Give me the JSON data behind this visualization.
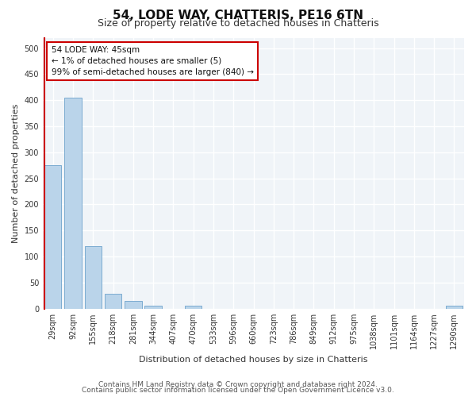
{
  "title1": "54, LODE WAY, CHATTERIS, PE16 6TN",
  "title2": "Size of property relative to detached houses in Chatteris",
  "xlabel": "Distribution of detached houses by size in Chatteris",
  "ylabel": "Number of detached properties",
  "categories": [
    "29sqm",
    "92sqm",
    "155sqm",
    "218sqm",
    "281sqm",
    "344sqm",
    "407sqm",
    "470sqm",
    "533sqm",
    "596sqm",
    "660sqm",
    "723sqm",
    "786sqm",
    "849sqm",
    "912sqm",
    "975sqm",
    "1038sqm",
    "1101sqm",
    "1164sqm",
    "1227sqm",
    "1290sqm"
  ],
  "values": [
    275,
    405,
    120,
    28,
    14,
    5,
    0,
    5,
    0,
    0,
    0,
    0,
    0,
    0,
    0,
    0,
    0,
    0,
    0,
    0,
    5
  ],
  "bar_color": "#bad4ea",
  "bar_edge_color": "#6ea3cc",
  "highlight_color": "#cc0000",
  "annotation_line1": "54 LODE WAY: 45sqm",
  "annotation_line2": "← 1% of detached houses are smaller (5)",
  "annotation_line3": "99% of semi-detached houses are larger (840) →",
  "annotation_box_color": "#cc0000",
  "ylim": [
    0,
    520
  ],
  "yticks": [
    0,
    50,
    100,
    150,
    200,
    250,
    300,
    350,
    400,
    450,
    500
  ],
  "footer1": "Contains HM Land Registry data © Crown copyright and database right 2024.",
  "footer2": "Contains public sector information licensed under the Open Government Licence v3.0.",
  "background_color": "#ffffff",
  "plot_bg_color": "#f0f4f8",
  "grid_color": "#ffffff",
  "title1_fontsize": 11,
  "title2_fontsize": 9,
  "tick_fontsize": 7,
  "label_fontsize": 8,
  "annotation_fontsize": 7.5,
  "footer_fontsize": 6.5
}
